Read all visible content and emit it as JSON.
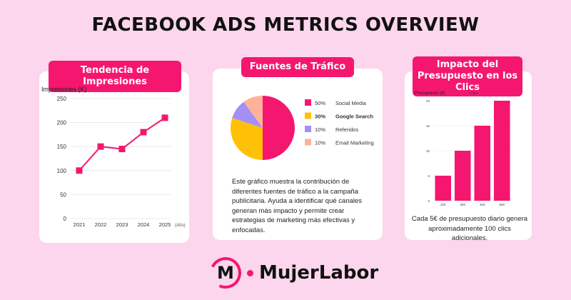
{
  "page": {
    "title": "FACEBOOK ADS METRICS OVERVIEW",
    "brand_first": "M",
    "brand_name": "MujerLabor",
    "accent_color": "#f5176f",
    "background_color": "#fbd6ec"
  },
  "chart_data": [
    {
      "type": "line",
      "title": "Tendencia de Impresiones",
      "ylabel": "Impresiones (K)",
      "xlabel": "(Año)",
      "x": [
        "2021",
        "2022",
        "2023",
        "2024",
        "2025"
      ],
      "values": [
        100,
        150,
        145,
        180,
        210
      ],
      "yticks": [
        0,
        50,
        100,
        150,
        200,
        250
      ],
      "ylim": [
        0,
        250
      ],
      "grid": true,
      "marker": "square",
      "color": "#f5176f"
    },
    {
      "type": "pie",
      "title": "Fuentes de Tráfico",
      "slices": [
        {
          "label": "Social Media",
          "value": 50,
          "value_label": "50%",
          "color": "#f5176f"
        },
        {
          "label": "Google Search",
          "value": 30,
          "value_label": "30%",
          "color": "#ffc107"
        },
        {
          "label": "Referidos",
          "value": 10,
          "value_label": "10%",
          "color": "#a390f5"
        },
        {
          "label": "Email Marketing",
          "value": 10,
          "value_label": "10%",
          "color": "#ffb299"
        }
      ],
      "legend_position": "right",
      "description": "Este gráfico muestra la contribución de diferentes fuentes de tráfico a la campaña publicitaria. Ayuda a identificar qué canales generan más impacto y permite crear estrategias de marketing más efectivas y enfocadas."
    },
    {
      "type": "bar",
      "title": "Impacto del Presupuesto en los Clics",
      "ylabel": "Presupuesto (€)",
      "legend": "Clics",
      "categories": [
        "200",
        "300",
        "400",
        "500"
      ],
      "values": [
        5,
        10,
        15,
        20
      ],
      "yticks": [
        0,
        5,
        10,
        15,
        20
      ],
      "ylim": [
        0,
        20
      ],
      "grid": true,
      "color": "#f5176f",
      "description": "Cada 5€ de presupuesto diario genera aproximadamente 100 clics adicionales."
    }
  ]
}
